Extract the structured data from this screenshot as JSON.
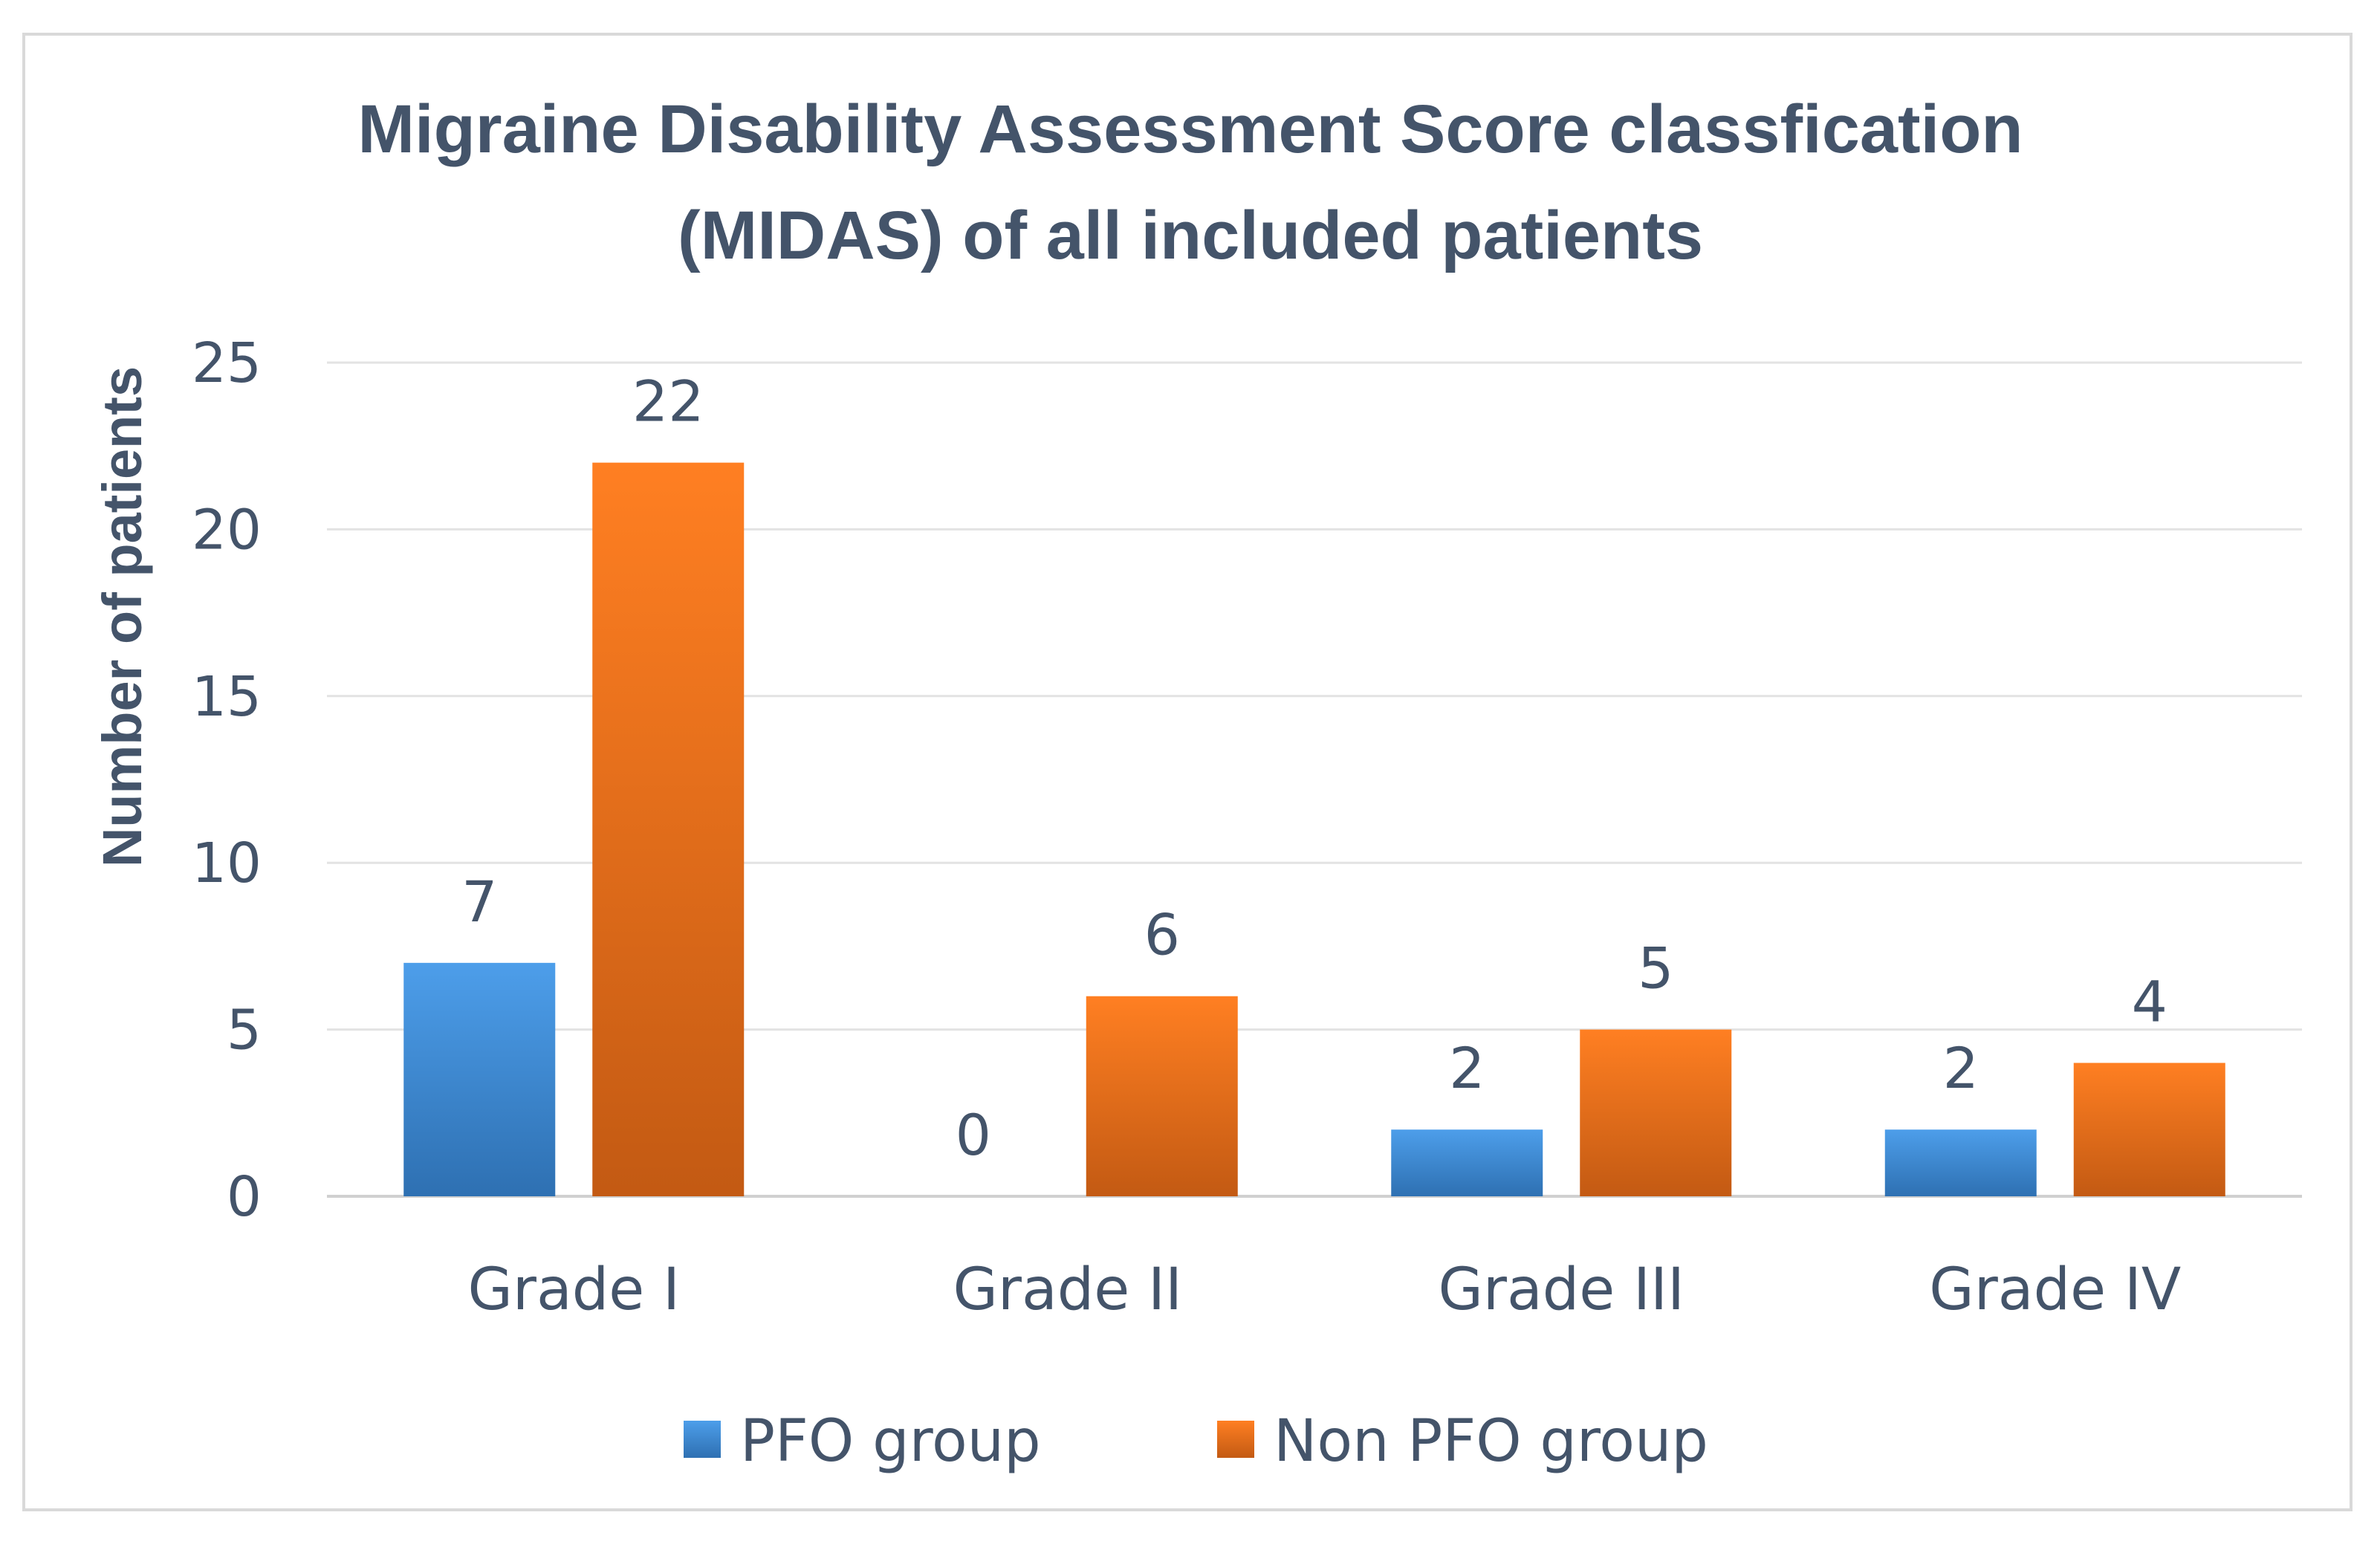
{
  "chart_data": {
    "type": "bar",
    "title_lines": [
      "Migraine Disability Assessment Score classfication",
      "(MIDAS) of all included patients"
    ],
    "xlabel": "",
    "ylabel": "Number of patients",
    "categories": [
      "Grade I",
      "Grade II",
      "Grade III",
      "Grade IV"
    ],
    "series": [
      {
        "name": "PFO group",
        "values": [
          7,
          0,
          2,
          2
        ],
        "color": "#4a97dd"
      },
      {
        "name": "Non PFO group",
        "values": [
          22,
          6,
          5,
          4
        ],
        "color": "#ed7523"
      }
    ],
    "ylim": [
      0,
      25
    ],
    "yticks": [
      0,
      5,
      10,
      15,
      20,
      25
    ],
    "grid": true,
    "legend_position": "bottom"
  }
}
